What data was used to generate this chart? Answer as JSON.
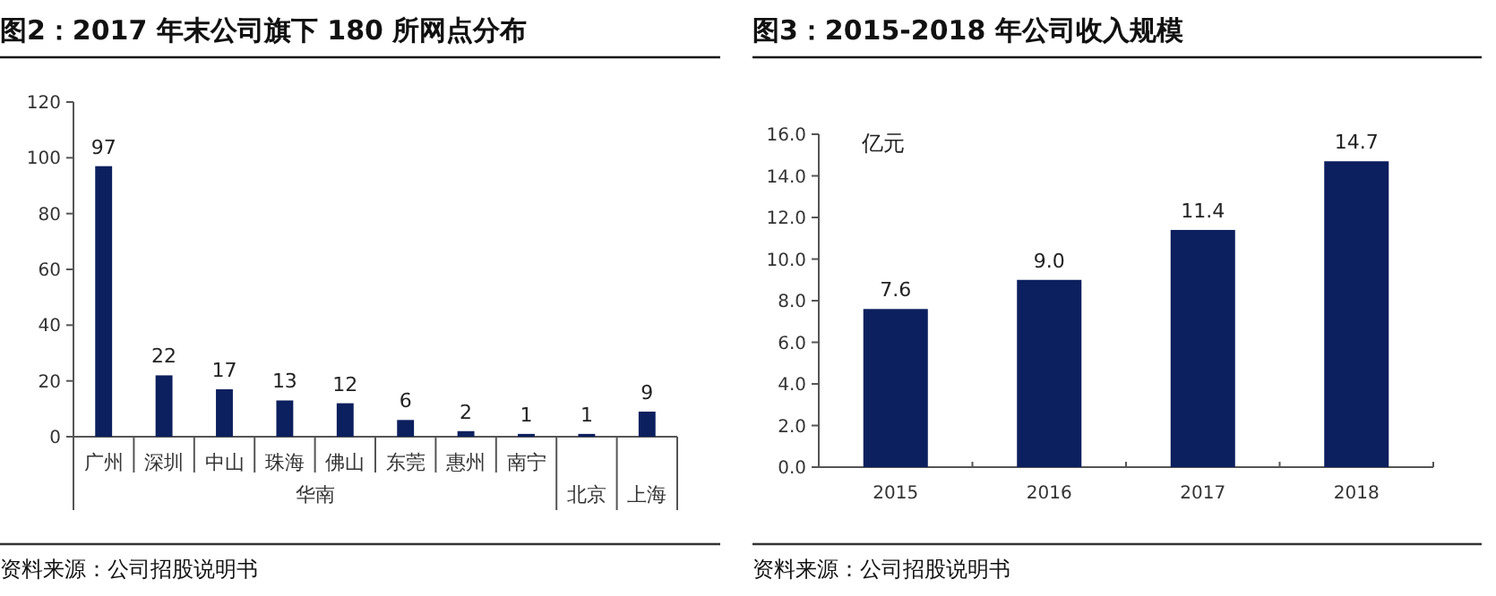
{
  "chart_data": [
    {
      "type": "bar",
      "title": "图2：2017 年末公司旗下 180 所网点分布",
      "categories": [
        "广州",
        "深圳",
        "中山",
        "珠海",
        "佛山",
        "东莞",
        "惠州",
        "南宁",
        "北京",
        "上海"
      ],
      "values": [
        97,
        22,
        17,
        13,
        12,
        6,
        2,
        1,
        1,
        9
      ],
      "color": "#0c1f5e",
      "data_labels": true,
      "ylim": [
        0,
        120
      ],
      "yticks": [
        0,
        20,
        40,
        60,
        80,
        100,
        120
      ],
      "grid": false,
      "annotations": [
        "华南",
        "资料来源：公司招股说明书"
      ]
    },
    {
      "type": "bar",
      "title": "图3：2015-2018 年公司收入规模",
      "ylabel": "亿元",
      "categories": [
        "2015",
        "2016",
        "2017",
        "2018"
      ],
      "values": [
        7.6,
        9.0,
        11.4,
        14.7
      ],
      "value_labels": [
        "7.6",
        "9.0",
        "11.4",
        "14.7"
      ],
      "color": "#0c1f5e",
      "ylim": [
        0,
        16
      ],
      "yticks": [
        {
          "value": 0,
          "label": "0.0"
        },
        {
          "value": 2,
          "label": "2.0"
        },
        {
          "value": 4,
          "label": "4.0"
        },
        {
          "value": 6,
          "label": "6.0"
        },
        {
          "value": 8,
          "label": "8.0"
        },
        {
          "value": 10,
          "label": "10.0"
        },
        {
          "value": 12,
          "label": "12.0"
        },
        {
          "value": 14,
          "label": "14.0"
        },
        {
          "value": 16,
          "label": "16.0"
        }
      ],
      "grid": false,
      "annotations": [
        "资料来源：公司招股说明书"
      ]
    }
  ]
}
